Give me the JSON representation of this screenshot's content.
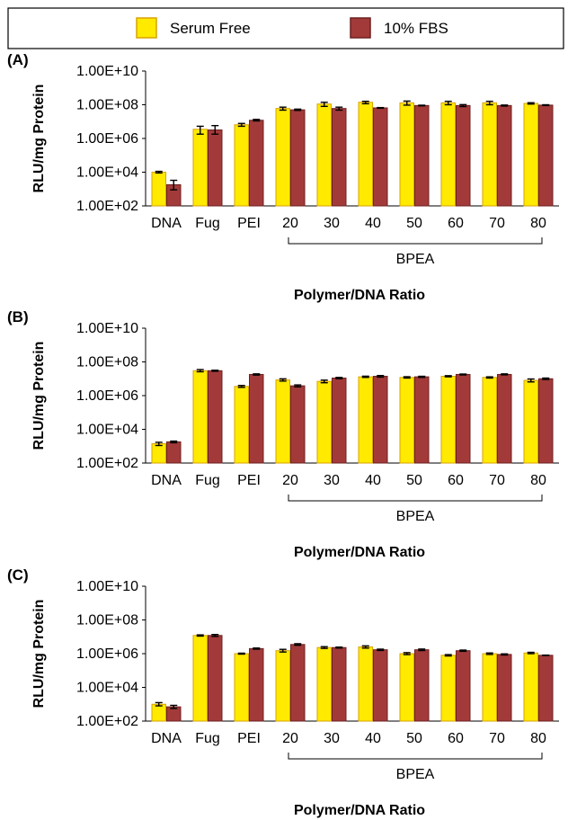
{
  "legend": {
    "items": [
      {
        "label": "Serum Free",
        "color": "#FFEA00",
        "border": "#D9A300"
      },
      {
        "label": "10% FBS",
        "color": "#A33A3A",
        "border": "#6E2020"
      }
    ]
  },
  "chart_data": [
    {
      "panel": "(A)",
      "type": "bar",
      "scale": "log",
      "ylabel": "RLU/mg Protein",
      "xlabel": "Polymer/DNA Ratio",
      "group_label": "BPEA",
      "categories": [
        "DNA",
        "Fug",
        "PEI",
        "20",
        "30",
        "40",
        "50",
        "60",
        "70",
        "80"
      ],
      "yticks": [
        "1.00E+02",
        "1.00E+04",
        "1.00E+06",
        "1.00E+08",
        "1.00E+10"
      ],
      "ylim": [
        100,
        10000000000
      ],
      "grid": false,
      "series": [
        {
          "name": "Serum Free",
          "values": [
            10000,
            3500000,
            6500000,
            60000000,
            110000000,
            140000000,
            130000000,
            130000000,
            130000000,
            120000000
          ],
          "err_low": [
            9000,
            1800000,
            5300000,
            48000000,
            80000000,
            115000000,
            95000000,
            100000000,
            100000000,
            110000000
          ],
          "err_high": [
            11200,
            5300000,
            7800000,
            72000000,
            140000000,
            160000000,
            165000000,
            160000000,
            160000000,
            132000000
          ]
        },
        {
          "name": "10% FBS",
          "values": [
            1800,
            3200000,
            12000000,
            50000000,
            60000000,
            65000000,
            90000000,
            90000000,
            90000000,
            95000000
          ],
          "err_low": [
            900,
            1800000,
            11000000,
            46000000,
            48000000,
            62000000,
            86000000,
            78000000,
            84000000,
            90000000
          ],
          "err_high": [
            3300,
            5800000,
            13500000,
            55000000,
            72000000,
            68000000,
            94000000,
            102000000,
            96000000,
            100000000
          ]
        }
      ]
    },
    {
      "panel": "(B)",
      "type": "bar",
      "scale": "log",
      "ylabel": "RLU/mg Protein",
      "xlabel": "Polymer/DNA Ratio",
      "group_label": "BPEA",
      "categories": [
        "DNA",
        "Fug",
        "PEI",
        "20",
        "30",
        "40",
        "50",
        "60",
        "70",
        "80"
      ],
      "yticks": [
        "1.00E+02",
        "1.00E+04",
        "1.00E+06",
        "1.00E+08",
        "1.00E+10"
      ],
      "ylim": [
        100,
        10000000000
      ],
      "grid": false,
      "series": [
        {
          "name": "Serum Free",
          "values": [
            1400,
            30000000,
            3500000,
            8500000,
            7000000,
            13000000,
            12000000,
            14000000,
            12000000,
            8000000
          ],
          "err_low": [
            1100,
            26000000,
            3100000,
            7300000,
            5800000,
            12000000,
            11000000,
            13000000,
            11000000,
            6500000
          ],
          "err_high": [
            1700,
            35000000,
            4000000,
            9900000,
            8300000,
            14200000,
            13200000,
            15200000,
            13000000,
            9700000
          ]
        },
        {
          "name": "10% FBS",
          "values": [
            1800,
            30000000,
            18000000,
            3800000,
            11000000,
            14000000,
            13000000,
            18000000,
            18000000,
            10000000
          ],
          "err_low": [
            1600,
            28000000,
            16500000,
            3300000,
            10000000,
            12500000,
            12000000,
            16800000,
            17000000,
            9000000
          ],
          "err_high": [
            2000,
            32000000,
            19500000,
            4300000,
            12000000,
            15500000,
            14000000,
            19000000,
            19500000,
            11000000
          ]
        }
      ]
    },
    {
      "panel": "(C)",
      "type": "bar",
      "scale": "log",
      "ylabel": "RLU/mg Protein",
      "xlabel": "Polymer/DNA Ratio",
      "group_label": "BPEA",
      "categories": [
        "DNA",
        "Fug",
        "PEI",
        "20",
        "30",
        "40",
        "50",
        "60",
        "70",
        "80"
      ],
      "yticks": [
        "1.00E+02",
        "1.00E+04",
        "1.00E+06",
        "1.00E+08",
        "1.00E+10"
      ],
      "ylim": [
        100,
        10000000000
      ],
      "grid": false,
      "series": [
        {
          "name": "Serum Free",
          "values": [
            1000,
            12000000,
            1000000,
            1500000,
            2300000,
            2500000,
            1000000,
            800000,
            1000000,
            1100000
          ],
          "err_low": [
            800,
            11000000,
            940000,
            1250000,
            2050000,
            2150000,
            880000,
            730000,
            900000,
            1000000
          ],
          "err_high": [
            1250,
            13000000,
            1070000,
            1800000,
            2600000,
            2900000,
            1150000,
            880000,
            1100000,
            1200000
          ]
        },
        {
          "name": "10% FBS",
          "values": [
            700,
            12000000,
            2000000,
            3500000,
            2300000,
            1700000,
            1700000,
            1500000,
            900000,
            800000
          ],
          "err_low": [
            560,
            10500000,
            1850000,
            3150000,
            2150000,
            1550000,
            1530000,
            1380000,
            830000,
            780000
          ],
          "err_high": [
            860,
            13700000,
            2160000,
            3900000,
            2450000,
            1850000,
            1880000,
            1630000,
            970000,
            820000
          ]
        }
      ]
    }
  ]
}
